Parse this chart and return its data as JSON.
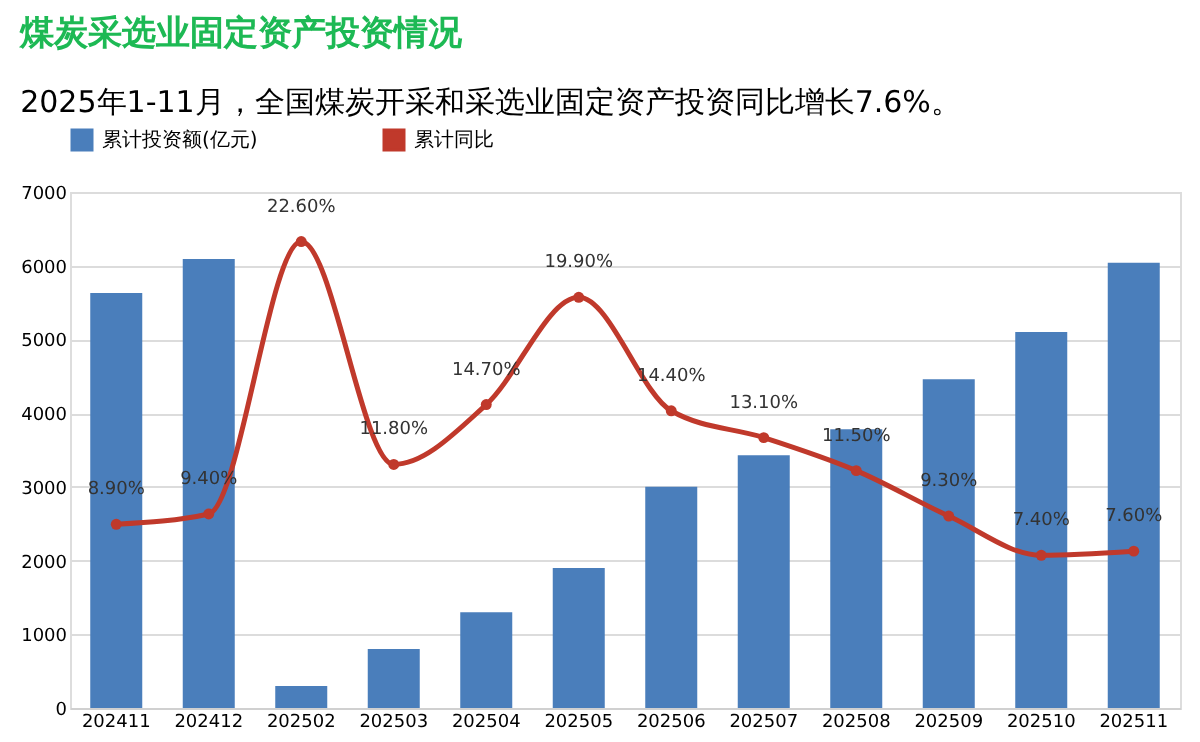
{
  "chart_data": {
    "type": "bar",
    "title": "煤炭采选业固定资产投资情况",
    "subtitle": "2025年1-11月，全国煤炭开采和采选业固定资产投资同比增长7.6%。",
    "categories": [
      "202411",
      "202412",
      "202502",
      "202503",
      "202504",
      "202505",
      "202506",
      "202507",
      "202508",
      "202509",
      "202510",
      "202511"
    ],
    "series": [
      {
        "name": "累计投资额(亿元)",
        "color": "#4a7ebb",
        "values": [
          5630,
          6090,
          300,
          800,
          1300,
          1900,
          3000,
          3430,
          3780,
          4460,
          5100,
          6040
        ]
      },
      {
        "name": "累计同比",
        "type": "line",
        "axis": "y2",
        "color": "#c0392b",
        "marker": "circle",
        "values": [
          8.9,
          9.4,
          22.6,
          11.8,
          14.7,
          19.9,
          14.4,
          13.1,
          11.5,
          9.3,
          7.4,
          7.6
        ],
        "value_labels": [
          "8.90%",
          "9.40%",
          "22.60%",
          "11.80%",
          "14.70%",
          "19.90%",
          "14.40%",
          "13.10%",
          "11.50%",
          "9.30%",
          "7.40%",
          "7.60%"
        ]
      }
    ],
    "ylim": [
      0,
      7000
    ],
    "yticks": [
      0,
      1000,
      2000,
      3000,
      4000,
      5000,
      6000,
      7000
    ],
    "y2lim": [
      0,
      25
    ],
    "tick_labels": "xy",
    "grid": "y",
    "legend": "top"
  }
}
